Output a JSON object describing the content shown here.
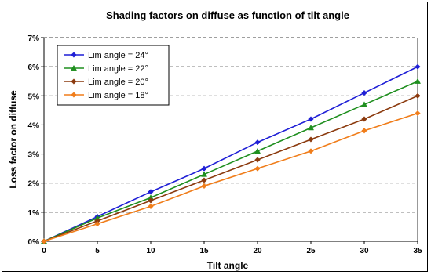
{
  "chart_data": {
    "type": "line",
    "title": "Shading factors on diffuse as function of tilt angle",
    "xlabel": "Tilt angle",
    "ylabel": "Loss factor on diffuse",
    "x": [
      0,
      5,
      10,
      15,
      20,
      25,
      30,
      35
    ],
    "xlim": [
      0,
      35
    ],
    "ylim": [
      0,
      7
    ],
    "yticks": [
      0,
      1,
      2,
      3,
      4,
      5,
      6,
      7
    ],
    "ytick_labels": [
      "0%",
      "1%",
      "2%",
      "3%",
      "4%",
      "5%",
      "6%",
      "7%"
    ],
    "xtick_labels": [
      "0",
      "5",
      "10",
      "15",
      "20",
      "25",
      "30",
      "35"
    ],
    "grid": "horizontal-dashed",
    "legend_position": "top-left",
    "series": [
      {
        "name": "Lim angle = 24°",
        "color": "#1f1fd6",
        "marker": "diamond",
        "values": [
          0,
          0.85,
          1.7,
          2.5,
          3.4,
          4.2,
          5.1,
          6.0
        ]
      },
      {
        "name": "Lim angle = 22°",
        "color": "#1f8f1f",
        "marker": "triangle",
        "values": [
          0,
          0.8,
          1.5,
          2.3,
          3.1,
          3.9,
          4.7,
          5.5
        ]
      },
      {
        "name": "Lim angle = 20°",
        "color": "#8b3a0e",
        "marker": "diamond",
        "values": [
          0,
          0.7,
          1.4,
          2.1,
          2.8,
          3.5,
          4.2,
          5.0
        ]
      },
      {
        "name": "Lim angle = 18°",
        "color": "#f07d1a",
        "marker": "diamond",
        "values": [
          0,
          0.6,
          1.2,
          1.9,
          2.5,
          3.1,
          3.8,
          4.4
        ]
      }
    ]
  }
}
